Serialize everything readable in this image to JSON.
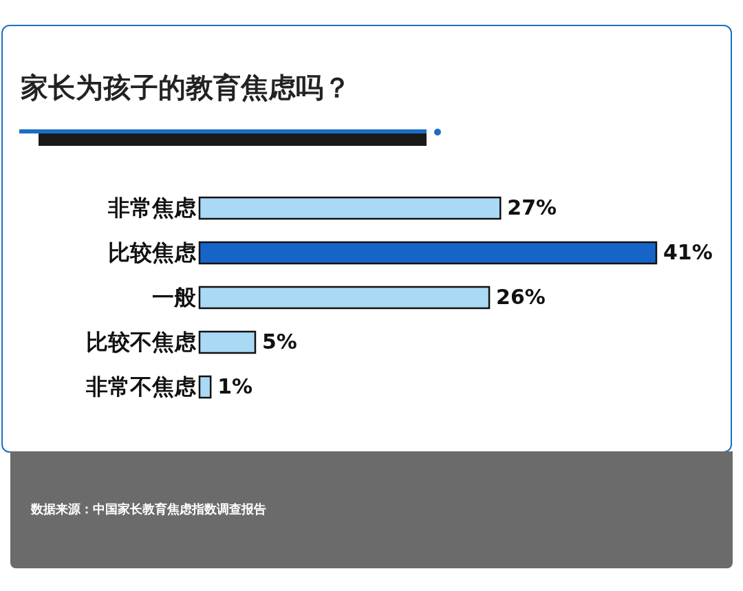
{
  "chart_data": {
    "type": "bar",
    "orientation": "horizontal",
    "title": "家长为孩子的教育焦虑吗？",
    "categories": [
      "非常焦虑",
      "比较焦虑",
      "一般",
      "比较不焦虑",
      "非常不焦虑"
    ],
    "values": [
      27,
      41,
      26,
      5,
      1
    ],
    "colors": [
      "#a9d9f5",
      "#1565c8",
      "#a9d9f5",
      "#a9d9f5",
      "#a9d9f5"
    ],
    "value_labels": [
      "27%",
      "41%",
      "26%",
      "5%",
      "1%"
    ],
    "annotations": [
      "数据来源：中国家长教育焦虑指数调查报告"
    ]
  }
}
